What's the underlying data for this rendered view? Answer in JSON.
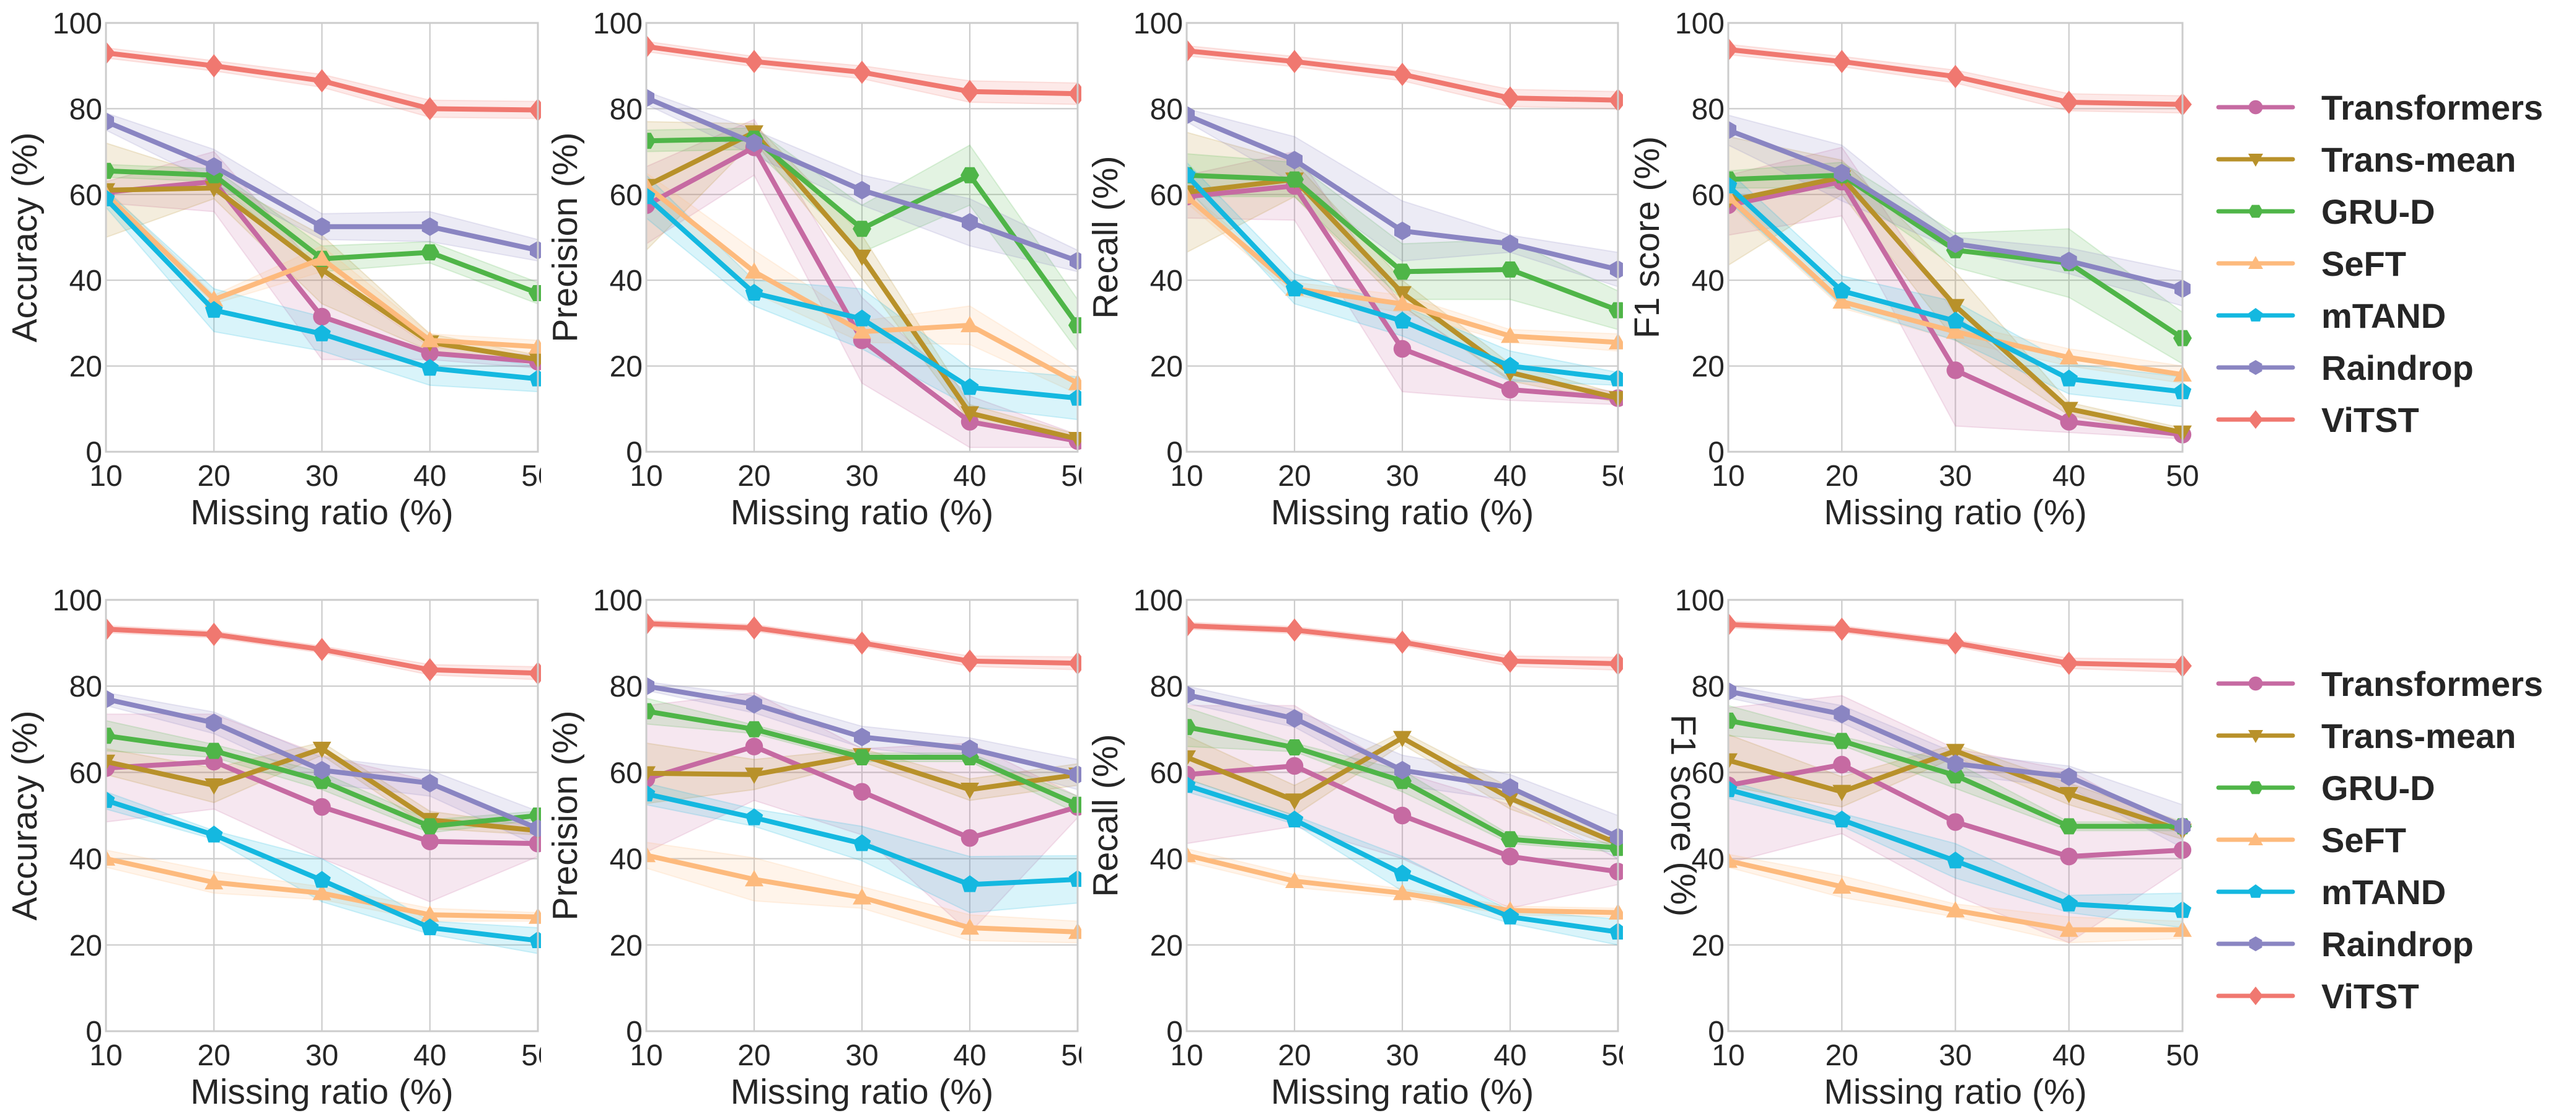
{
  "chart_data": {
    "type": "line",
    "x": [
      10,
      20,
      30,
      40,
      50
    ],
    "xlabel": "Missing ratio (%)",
    "ylim": [
      0,
      100
    ],
    "xlim": [
      10,
      50
    ],
    "yticks": [
      0,
      20,
      40,
      60,
      80,
      100
    ],
    "xticks": [
      10,
      20,
      30,
      40,
      50
    ],
    "grid": true,
    "legend_placement": "right",
    "legend": [
      {
        "name": "Transformers",
        "color": "#c66aa2",
        "marker": "circle"
      },
      {
        "name": "Trans-mean",
        "color": "#b8912a",
        "marker": "triangle-down"
      },
      {
        "name": "GRU-D",
        "color": "#4fb548",
        "marker": "hexagon"
      },
      {
        "name": "SeFT",
        "color": "#fdba7d",
        "marker": "triangle-up"
      },
      {
        "name": "mTAND",
        "color": "#14b8e0",
        "marker": "pentagon"
      },
      {
        "name": "Raindrop",
        "color": "#8a85c2",
        "marker": "hexagon-vertical"
      },
      {
        "name": "ViTST",
        "color": "#f07870",
        "marker": "diamond"
      }
    ],
    "panels": [
      {
        "row": "top",
        "ylabel": "Accuracy (%)",
        "series": [
          {
            "name": "Transformers",
            "values": [
              60.5,
              63,
              31.5,
              23,
              21
            ],
            "std": [
              2.5,
              7,
              10,
              1.5,
              1.5
            ]
          },
          {
            "name": "Trans-mean",
            "values": [
              61,
              61.5,
              42.5,
              25.5,
              21.5
            ],
            "std": [
              11,
              2.5,
              8,
              2,
              1
            ]
          },
          {
            "name": "GRU-D",
            "values": [
              65.5,
              64.5,
              45,
              46.5,
              37
            ],
            "std": [
              1.5,
              1.5,
              3,
              2.5,
              2.5
            ]
          },
          {
            "name": "SeFT",
            "values": [
              60,
              35.5,
              45,
              26,
              24.5
            ],
            "std": [
              1.5,
              1,
              3,
              1.5,
              1.5
            ]
          },
          {
            "name": "mTAND",
            "values": [
              59,
              33,
              27.5,
              19.5,
              17
            ],
            "std": [
              2,
              5,
              4,
              4,
              3
            ]
          },
          {
            "name": "Raindrop",
            "values": [
              77,
              66.5,
              52.5,
              52.5,
              47
            ],
            "std": [
              2,
              4,
              3,
              3.5,
              2.5
            ]
          },
          {
            "name": "ViTST",
            "values": [
              93,
              90,
              86.5,
              80,
              79.7
            ],
            "std": [
              1.2,
              1.2,
              1.5,
              2,
              2
            ]
          }
        ]
      },
      {
        "row": "top",
        "ylabel": "Precision (%)",
        "series": [
          {
            "name": "Transformers",
            "values": [
              57.5,
              71,
              26,
              7,
              2.5
            ],
            "std": [
              9,
              6.5,
              10,
              6,
              1.5
            ]
          },
          {
            "name": "Trans-mean",
            "values": [
              62,
              74.5,
              45.5,
              9,
              3
            ],
            "std": [
              15,
              2,
              5,
              2,
              1
            ]
          },
          {
            "name": "GRU-D",
            "values": [
              72.5,
              73,
              52,
              64.5,
              29.5
            ],
            "std": [
              2.5,
              2.5,
              5.5,
              7,
              6
            ]
          },
          {
            "name": "SeFT",
            "values": [
              62,
              42,
              28,
              29.5,
              16
            ],
            "std": [
              3,
              5,
              2.5,
              4.5,
              2.5
            ]
          },
          {
            "name": "mTAND",
            "values": [
              59.5,
              37,
              31,
              15,
              12.5
            ],
            "std": [
              5,
              3,
              7,
              4.5,
              5
            ]
          },
          {
            "name": "Raindrop",
            "values": [
              82.5,
              72,
              61,
              53.5,
              44.5
            ],
            "std": [
              1.5,
              3,
              3.5,
              5.5,
              2.5
            ]
          },
          {
            "name": "ViTST",
            "values": [
              94.5,
              91,
              88.5,
              84,
              83.5
            ],
            "std": [
              1.2,
              1.2,
              1.5,
              2.5,
              2.5
            ]
          }
        ]
      },
      {
        "row": "top",
        "ylabel": "Recall (%)",
        "series": [
          {
            "name": "Transformers",
            "values": [
              59.5,
              62,
              24,
              14.5,
              12.5
            ],
            "std": [
              5,
              8,
              10,
              2.5,
              1.5
            ]
          },
          {
            "name": "Trans-mean",
            "values": [
              60.5,
              63.5,
              37,
              18.5,
              12.5
            ],
            "std": [
              14,
              4,
              3,
              2,
              1
            ]
          },
          {
            "name": "GRU-D",
            "values": [
              64.5,
              63.5,
              42,
              42.5,
              33
            ],
            "std": [
              5,
              4,
              6.5,
              7,
              4.5
            ]
          },
          {
            "name": "SeFT",
            "values": [
              59.5,
              38,
              34.5,
              27,
              25.5
            ],
            "std": [
              1.5,
              1.5,
              2,
              1.5,
              2
            ]
          },
          {
            "name": "mTAND",
            "values": [
              64.5,
              38,
              30.5,
              20,
              17
            ],
            "std": [
              3,
              3.5,
              3.5,
              3.5,
              1.5
            ]
          },
          {
            "name": "Raindrop",
            "values": [
              78.5,
              68,
              51.5,
              48.5,
              42.5
            ],
            "std": [
              1.5,
              5.5,
              7,
              2,
              4
            ]
          },
          {
            "name": "ViTST",
            "values": [
              93.5,
              91,
              88,
              82.5,
              82
            ],
            "std": [
              1.2,
              1.2,
              1.5,
              2,
              2
            ]
          }
        ]
      },
      {
        "row": "top",
        "ylabel": "F1 score (%)",
        "series": [
          {
            "name": "Transformers",
            "values": [
              57.5,
              63,
              19,
              7,
              4
            ],
            "std": [
              7,
              8,
              13,
              2.5,
              1
            ]
          },
          {
            "name": "Trans-mean",
            "values": [
              58.5,
              64,
              34,
              10,
              4.5
            ],
            "std": [
              15,
              4,
              8,
              1.5,
              1
            ]
          },
          {
            "name": "GRU-D",
            "values": [
              63.5,
              64.5,
              47,
              44,
              26.5
            ],
            "std": [
              2,
              3,
              4,
              8,
              6
            ]
          },
          {
            "name": "SeFT",
            "values": [
              59.5,
              35,
              28,
              22,
              18
            ],
            "std": [
              1.5,
              1.5,
              2,
              2,
              2
            ]
          },
          {
            "name": "mTAND",
            "values": [
              62,
              37.5,
              30.5,
              17,
              14
            ],
            "std": [
              3.5,
              3.5,
              4.5,
              3.5,
              3.5
            ]
          },
          {
            "name": "Raindrop",
            "values": [
              75,
              65,
              48.5,
              44.5,
              38
            ],
            "std": [
              3.5,
              6.5,
              1.5,
              3,
              4
            ]
          },
          {
            "name": "ViTST",
            "values": [
              93.8,
              91,
              87.5,
              81.5,
              81
            ],
            "std": [
              1.2,
              1.2,
              1.5,
              2,
              2
            ]
          }
        ]
      },
      {
        "row": "bottom",
        "ylabel": "Accuracy (%)",
        "series": [
          {
            "name": "Transformers",
            "values": [
              61,
              62.5,
              52,
              44,
              43.5
            ],
            "std": [
              12.5,
              11,
              12,
              14,
              3
            ]
          },
          {
            "name": "Trans-mean",
            "values": [
              62.5,
              57,
              65.5,
              49,
              46.5
            ],
            "std": [
              3,
              4,
              1.5,
              2,
              1
            ]
          },
          {
            "name": "GRU-D",
            "values": [
              68.5,
              65,
              58,
              47.5,
              50
            ],
            "std": [
              3.5,
              1.5,
              2,
              1.5,
              1
            ]
          },
          {
            "name": "SeFT",
            "values": [
              40,
              34.5,
              32,
              27,
              26.5
            ],
            "std": [
              2,
              2.5,
              1.5,
              1.5,
              1
            ]
          },
          {
            "name": "mTAND",
            "values": [
              53.5,
              45.5,
              35,
              24,
              21
            ],
            "std": [
              2,
              1,
              5,
              1.5,
              3
            ]
          },
          {
            "name": "Raindrop",
            "values": [
              77,
              71.5,
              60.5,
              57.5,
              47
            ],
            "std": [
              1.5,
              2.5,
              3,
              3,
              4
            ]
          },
          {
            "name": "ViTST",
            "values": [
              93.2,
              92,
              88.5,
              83.8,
              83
            ],
            "std": [
              0.8,
              0.8,
              0.8,
              1.2,
              1.5
            ]
          }
        ]
      },
      {
        "row": "bottom",
        "ylabel": "Precision (%)",
        "series": [
          {
            "name": "Transformers",
            "values": [
              58.5,
              66,
              55.5,
              44.8,
              52
            ],
            "std": [
              17,
              12.5,
              10,
              22,
              2.5
            ]
          },
          {
            "name": "Trans-mean",
            "values": [
              59.8,
              59.5,
              64,
              56,
              59.5
            ],
            "std": [
              7,
              3.5,
              1.5,
              2.5,
              2.5
            ]
          },
          {
            "name": "GRU-D",
            "values": [
              74.2,
              70,
              63.5,
              63.5,
              52.5
            ],
            "std": [
              3,
              1,
              1,
              1,
              2
            ]
          },
          {
            "name": "SeFT",
            "values": [
              40.8,
              35.2,
              31,
              24,
              23
            ],
            "std": [
              3,
              5,
              2.5,
              3,
              2.5
            ]
          },
          {
            "name": "mTAND",
            "values": [
              55,
              49.5,
              43.5,
              34,
              35.2
            ],
            "std": [
              2.5,
              2,
              4,
              6.5,
              5.5
            ]
          },
          {
            "name": "Raindrop",
            "values": [
              80,
              75.8,
              68.2,
              65.5,
              59.5
            ],
            "std": [
              1,
              2,
              2.5,
              2.5,
              3.5
            ]
          },
          {
            "name": "ViTST",
            "values": [
              94.5,
              93.5,
              90,
              85.8,
              85.3
            ],
            "std": [
              0.8,
              0.8,
              0.8,
              1.2,
              1.5
            ]
          }
        ]
      },
      {
        "row": "bottom",
        "ylabel": "Recall (%)",
        "series": [
          {
            "name": "Transformers",
            "values": [
              59.5,
              61.5,
              50,
              40.5,
              37
            ],
            "std": [
              16,
              14,
              10,
              12,
              3
            ]
          },
          {
            "name": "Trans-mean",
            "values": [
              63.5,
              53.5,
              68,
              54,
              43.5
            ],
            "std": [
              5,
              3.5,
              1.5,
              2.5,
              1
            ]
          },
          {
            "name": "GRU-D",
            "values": [
              70.5,
              65.8,
              58,
              44.5,
              42.5
            ],
            "std": [
              4.5,
              1,
              2.5,
              1,
              1
            ]
          },
          {
            "name": "SeFT",
            "values": [
              40.8,
              34.8,
              32,
              28,
              27.5
            ],
            "std": [
              1.5,
              1.5,
              1,
              1,
              1
            ]
          },
          {
            "name": "mTAND",
            "values": [
              57,
              49,
              36.5,
              26.5,
              23
            ],
            "std": [
              1.5,
              1,
              4,
              1.5,
              3
            ]
          },
          {
            "name": "Raindrop",
            "values": [
              78,
              72.5,
              60.5,
              56.5,
              45
            ],
            "std": [
              2,
              2,
              3.5,
              3,
              5
            ]
          },
          {
            "name": "ViTST",
            "values": [
              94,
              93,
              90.2,
              85.8,
              85.2
            ],
            "std": [
              0.8,
              0.8,
              0.8,
              1.2,
              1.5
            ]
          }
        ]
      },
      {
        "row": "bottom",
        "ylabel": "F1 score (%)",
        "series": [
          {
            "name": "Transformers",
            "values": [
              57,
              61.8,
              48.5,
              40.5,
              42
            ],
            "std": [
              18,
              16,
              17,
              20,
              4
            ]
          },
          {
            "name": "Trans-mean",
            "values": [
              62.8,
              55.5,
              65,
              55,
              46.5
            ],
            "std": [
              6,
              3.5,
              1.5,
              2.5,
              2
            ]
          },
          {
            "name": "GRU-D",
            "values": [
              72,
              67.3,
              59.3,
              47.5,
              47.5
            ],
            "std": [
              3.5,
              1,
              3,
              1,
              1
            ]
          },
          {
            "name": "SeFT",
            "values": [
              39.5,
              33.5,
              28,
              23.5,
              23.5
            ],
            "std": [
              1.5,
              2.5,
              1.5,
              3,
              2
            ]
          },
          {
            "name": "mTAND",
            "values": [
              56,
              49,
              39.5,
              29.5,
              28
            ],
            "std": [
              2,
              1.5,
              4,
              2,
              4
            ]
          },
          {
            "name": "Raindrop",
            "values": [
              78.8,
              73.5,
              62,
              59,
              47.5
            ],
            "std": [
              1.5,
              2,
              2.5,
              2.5,
              5
            ]
          },
          {
            "name": "ViTST",
            "values": [
              94.3,
              93.2,
              90,
              85.3,
              84.7
            ],
            "std": [
              0.8,
              0.8,
              0.8,
              1.2,
              1.5
            ]
          }
        ]
      }
    ]
  }
}
